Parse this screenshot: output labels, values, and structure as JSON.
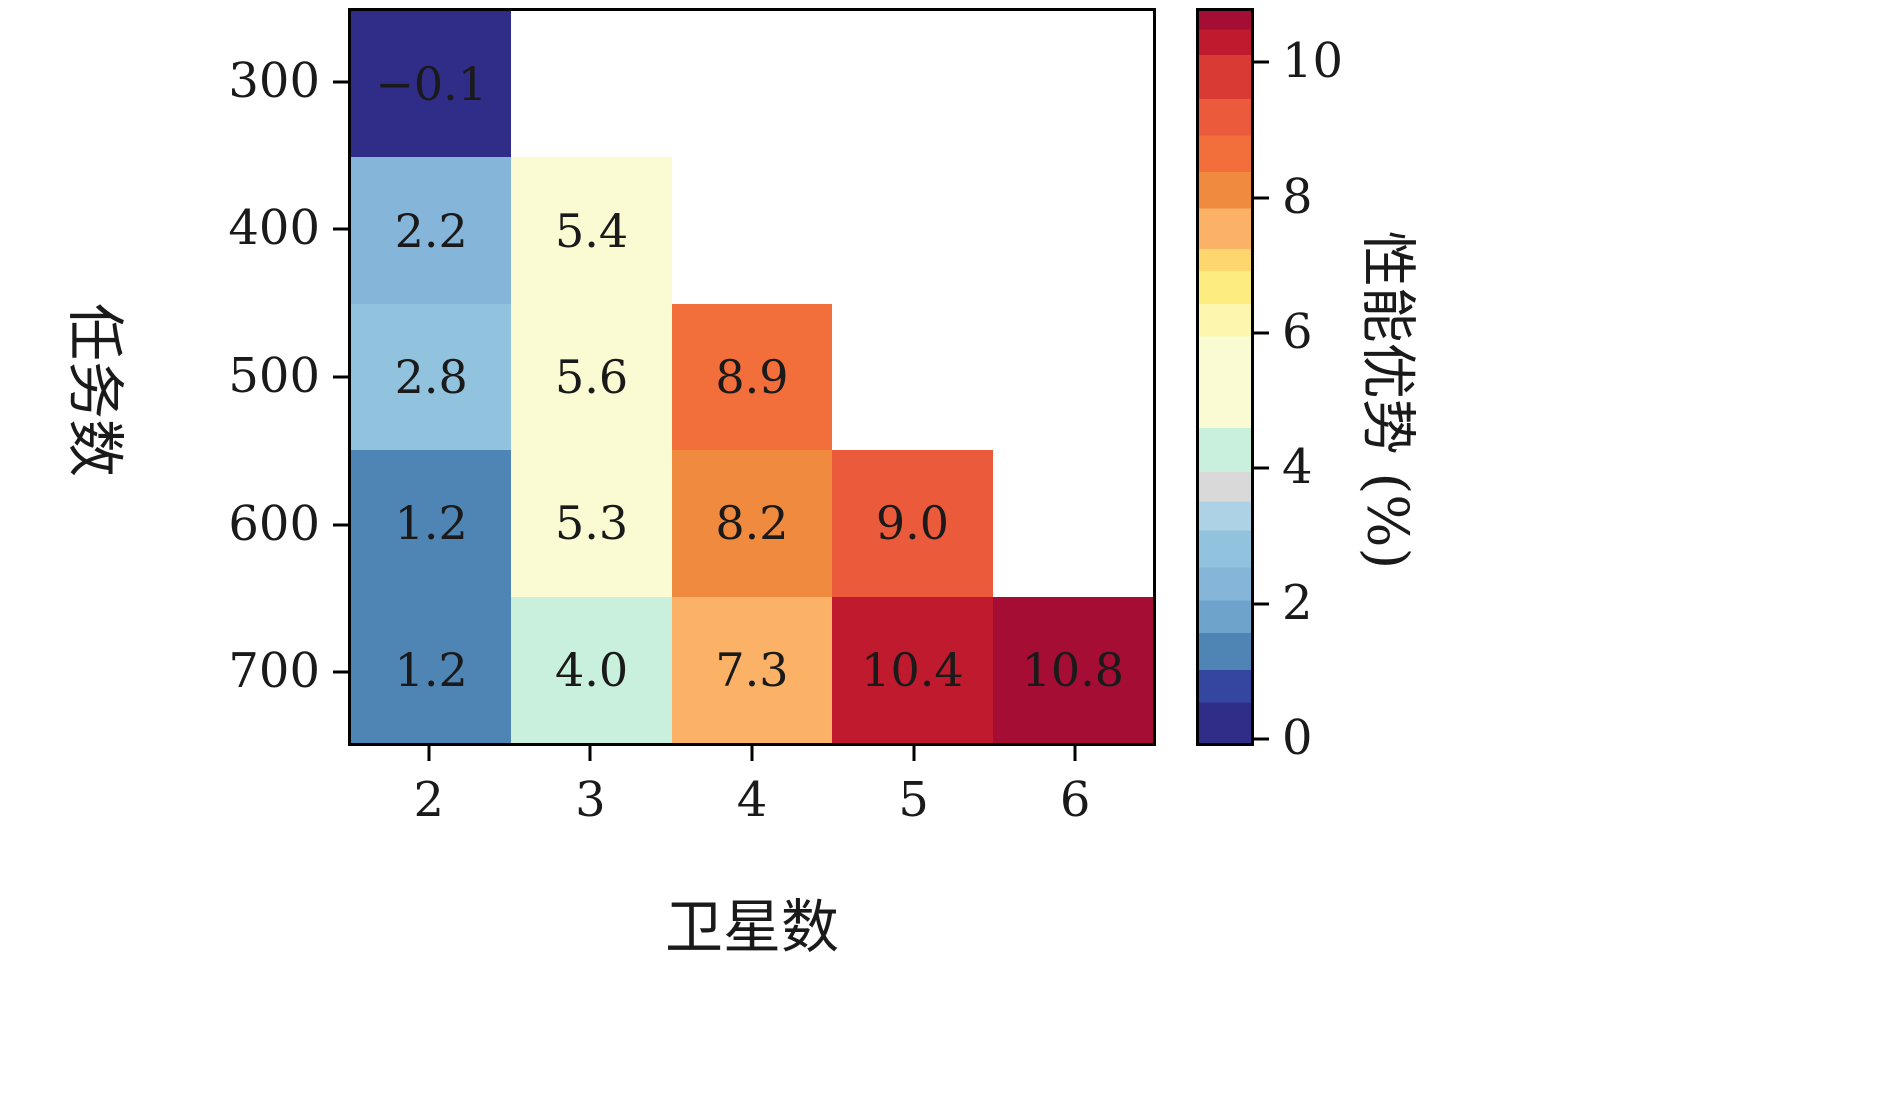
{
  "chart_data": {
    "type": "heatmap",
    "title": "",
    "xlabel": "卫星数",
    "ylabel": "任务数",
    "x_categories": [
      "2",
      "3",
      "4",
      "5",
      "6"
    ],
    "y_categories": [
      "300",
      "400",
      "500",
      "600",
      "700"
    ],
    "empty_cell_color": "#ffffff",
    "text_color": "#1a1a1a",
    "axis_color": "#000000",
    "rows": [
      {
        "y": "300",
        "cells": [
          {
            "label": "−0.1",
            "value": -0.1,
            "color": "#2f2d87"
          },
          {},
          {},
          {},
          {}
        ]
      },
      {
        "y": "400",
        "cells": [
          {
            "label": "2.2",
            "value": 2.2,
            "color": "#85b6d9"
          },
          {
            "label": "5.4",
            "value": 5.4,
            "color": "#fafbd2"
          },
          {},
          {},
          {}
        ]
      },
      {
        "y": "500",
        "cells": [
          {
            "label": "2.8",
            "value": 2.8,
            "color": "#92c3de"
          },
          {
            "label": "5.6",
            "value": 5.6,
            "color": "#fafbd2"
          },
          {
            "label": "8.9",
            "value": 8.9,
            "color": "#f26e3a"
          },
          {},
          {}
        ]
      },
      {
        "y": "600",
        "cells": [
          {
            "label": "1.2",
            "value": 1.2,
            "color": "#4f85b5"
          },
          {
            "label": "5.3",
            "value": 5.3,
            "color": "#fafbd2"
          },
          {
            "label": "8.2",
            "value": 8.2,
            "color": "#f08a3e"
          },
          {
            "label": "9.0",
            "value": 9.0,
            "color": "#ec5a3c"
          },
          {}
        ]
      },
      {
        "y": "700",
        "cells": [
          {
            "label": "1.2",
            "value": 1.2,
            "color": "#4f85b5"
          },
          {
            "label": "4.0",
            "value": 4.0,
            "color": "#c9f0dc"
          },
          {
            "label": "7.3",
            "value": 7.3,
            "color": "#fbb266"
          },
          {
            "label": "10.4",
            "value": 10.4,
            "color": "#c01a2e"
          },
          {
            "label": "10.8",
            "value": 10.8,
            "color": "#a60d35"
          }
        ]
      }
    ],
    "colorbar": {
      "label": "性能优势 (%)",
      "vmin": -0.1,
      "vmax": 10.8,
      "ticks": [
        "0",
        "2",
        "4",
        "6",
        "8",
        "10"
      ],
      "tick_values": [
        0,
        2,
        4,
        6,
        8,
        10
      ],
      "bands": [
        {
          "to": 0.055,
          "color": "#2f2d87"
        },
        {
          "to": 0.1,
          "color": "#3446a0"
        },
        {
          "to": 0.15,
          "color": "#4f85b5"
        },
        {
          "to": 0.195,
          "color": "#6ea4cb"
        },
        {
          "to": 0.24,
          "color": "#85b6d9"
        },
        {
          "to": 0.29,
          "color": "#92c3de"
        },
        {
          "to": 0.33,
          "color": "#aed2e5"
        },
        {
          "to": 0.37,
          "color": "#d9d9d9"
        },
        {
          "to": 0.43,
          "color": "#c9f0dc"
        },
        {
          "to": 0.555,
          "color": "#fafbd2"
        },
        {
          "to": 0.6,
          "color": "#fcf6ae"
        },
        {
          "to": 0.645,
          "color": "#fdec80"
        },
        {
          "to": 0.675,
          "color": "#fdd76e"
        },
        {
          "to": 0.73,
          "color": "#fbb266"
        },
        {
          "to": 0.78,
          "color": "#f08a3e"
        },
        {
          "to": 0.83,
          "color": "#f26e3a"
        },
        {
          "to": 0.88,
          "color": "#ec5a3c"
        },
        {
          "to": 0.94,
          "color": "#d93a33"
        },
        {
          "to": 0.975,
          "color": "#c01a2e"
        },
        {
          "to": 1.0,
          "color": "#a60d35"
        }
      ]
    }
  }
}
